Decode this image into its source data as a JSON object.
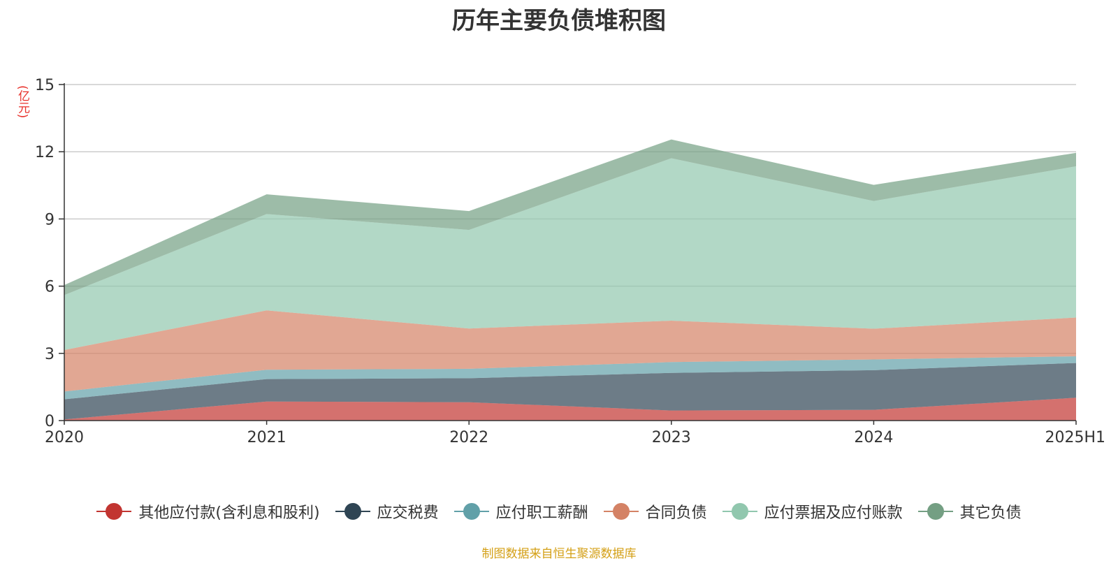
{
  "chart_data": {
    "type": "area",
    "stacked": true,
    "title": "历年主要负债堆积图",
    "y_unit_label": "(亿元)",
    "categories": [
      "2020",
      "2021",
      "2022",
      "2023",
      "2024",
      "2025H1"
    ],
    "y_ticks": [
      "0",
      "3",
      "6",
      "9",
      "12",
      "15"
    ],
    "ylim": [
      0,
      15
    ],
    "grid": true,
    "legend_position": "bottom",
    "series": [
      {
        "name": "其他应付款(含利息和股利)",
        "color": "#c23531",
        "values": [
          0.05,
          0.85,
          0.82,
          0.45,
          0.48,
          1.02
        ]
      },
      {
        "name": "应交税费",
        "color": "#2f4554",
        "values": [
          0.9,
          1.0,
          1.07,
          1.68,
          1.77,
          1.55
        ]
      },
      {
        "name": "应付职工薪酬",
        "color": "#61a0a8",
        "values": [
          0.35,
          0.42,
          0.42,
          0.48,
          0.48,
          0.3
        ]
      },
      {
        "name": "合同负债",
        "color": "#d48265",
        "values": [
          1.85,
          2.65,
          1.8,
          1.85,
          1.37,
          1.73
        ]
      },
      {
        "name": "应付票据及应付账款",
        "color": "#91c7ae",
        "values": [
          2.45,
          4.3,
          4.4,
          7.25,
          5.7,
          6.75
        ]
      },
      {
        "name": "其它负债",
        "color": "#749f83",
        "values": [
          0.45,
          0.88,
          0.84,
          0.84,
          0.72,
          0.6
        ]
      }
    ]
  },
  "source_note": "制图数据来自恒生聚源数据库"
}
